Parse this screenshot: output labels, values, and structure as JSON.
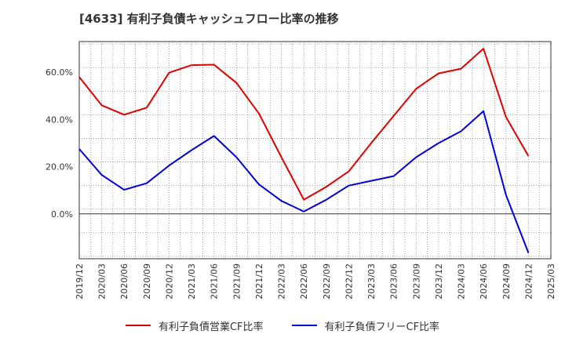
{
  "chart_data": {
    "type": "line",
    "title": "[4633]  有利子負債キャッシュフロー比率の推移",
    "x": [
      "2019/12",
      "2020/03",
      "2020/06",
      "2020/09",
      "2020/12",
      "2021/03",
      "2021/06",
      "2021/09",
      "2021/12",
      "2022/03",
      "2022/06",
      "2022/09",
      "2022/12",
      "2023/03",
      "2023/06",
      "2023/09",
      "2023/12",
      "2024/03",
      "2024/06",
      "2024/09",
      "2024/12"
    ],
    "x_ticks": [
      "2019/12",
      "2020/03",
      "2020/06",
      "2020/09",
      "2020/12",
      "2021/03",
      "2021/06",
      "2021/09",
      "2021/12",
      "2022/03",
      "2022/06",
      "2022/09",
      "2022/12",
      "2023/03",
      "2023/06",
      "2023/09",
      "2023/12",
      "2024/03",
      "2024/06",
      "2024/09",
      "2024/12",
      "2025/03"
    ],
    "y_ticks": [
      "0.0%",
      "20.0%",
      "40.0%",
      "60.0%"
    ],
    "y_tick_values": [
      0,
      20,
      40,
      60
    ],
    "ylim": [
      -19,
      73
    ],
    "ylabel": "",
    "xlabel": "",
    "grid": true,
    "legend_position": "bottom",
    "series": [
      {
        "name": "有利子負債営業CF比率",
        "color": "#e00000",
        "values": [
          58.0,
          46.0,
          42.0,
          45.0,
          59.8,
          63.0,
          63.2,
          55.5,
          42.5,
          24.0,
          6.0,
          11.5,
          18.0,
          30.0,
          41.5,
          53.0,
          59.5,
          61.5,
          70.0,
          41.0,
          24.5
        ]
      },
      {
        "name": "有利子負債フリーCF比率",
        "color": "#0000dd",
        "values": [
          27.5,
          16.5,
          10.2,
          13.0,
          20.5,
          27.0,
          33.0,
          24.0,
          12.5,
          5.5,
          1.0,
          6.0,
          12.0,
          14.0,
          16.0,
          24.0,
          30.0,
          35.0,
          43.5,
          8.0,
          -16.5
        ]
      }
    ]
  }
}
